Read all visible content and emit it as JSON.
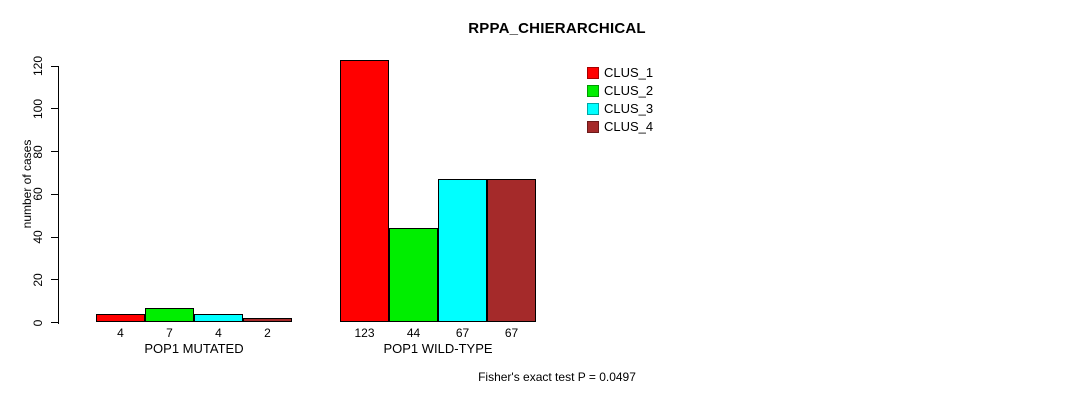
{
  "chart_data": {
    "type": "bar",
    "title": "RPPA_CHIERARCHICAL",
    "xlabel": "",
    "ylabel": "number of cases",
    "ylim": [
      0,
      120
    ],
    "yticks": [
      0,
      20,
      40,
      60,
      80,
      100,
      120
    ],
    "grid": false,
    "legend_position": "top-right",
    "bar_value_labels_shown": true,
    "categories": [
      "POP1 MUTATED",
      "POP1 WILD-TYPE"
    ],
    "groups": [
      {
        "label": "POP1 MUTATED",
        "values": [
          4,
          7,
          4,
          2
        ]
      },
      {
        "label": "POP1 WILD-TYPE",
        "values": [
          123,
          44,
          67,
          67
        ]
      }
    ],
    "series": [
      {
        "name": "CLUS_1",
        "color": "#ff0000"
      },
      {
        "name": "CLUS_2",
        "color": "#00ee00"
      },
      {
        "name": "CLUS_3",
        "color": "#00ffff"
      },
      {
        "name": "CLUS_4",
        "color": "#a52a2a"
      }
    ],
    "annotation": "Fisher's exact test P = 0.0497"
  }
}
